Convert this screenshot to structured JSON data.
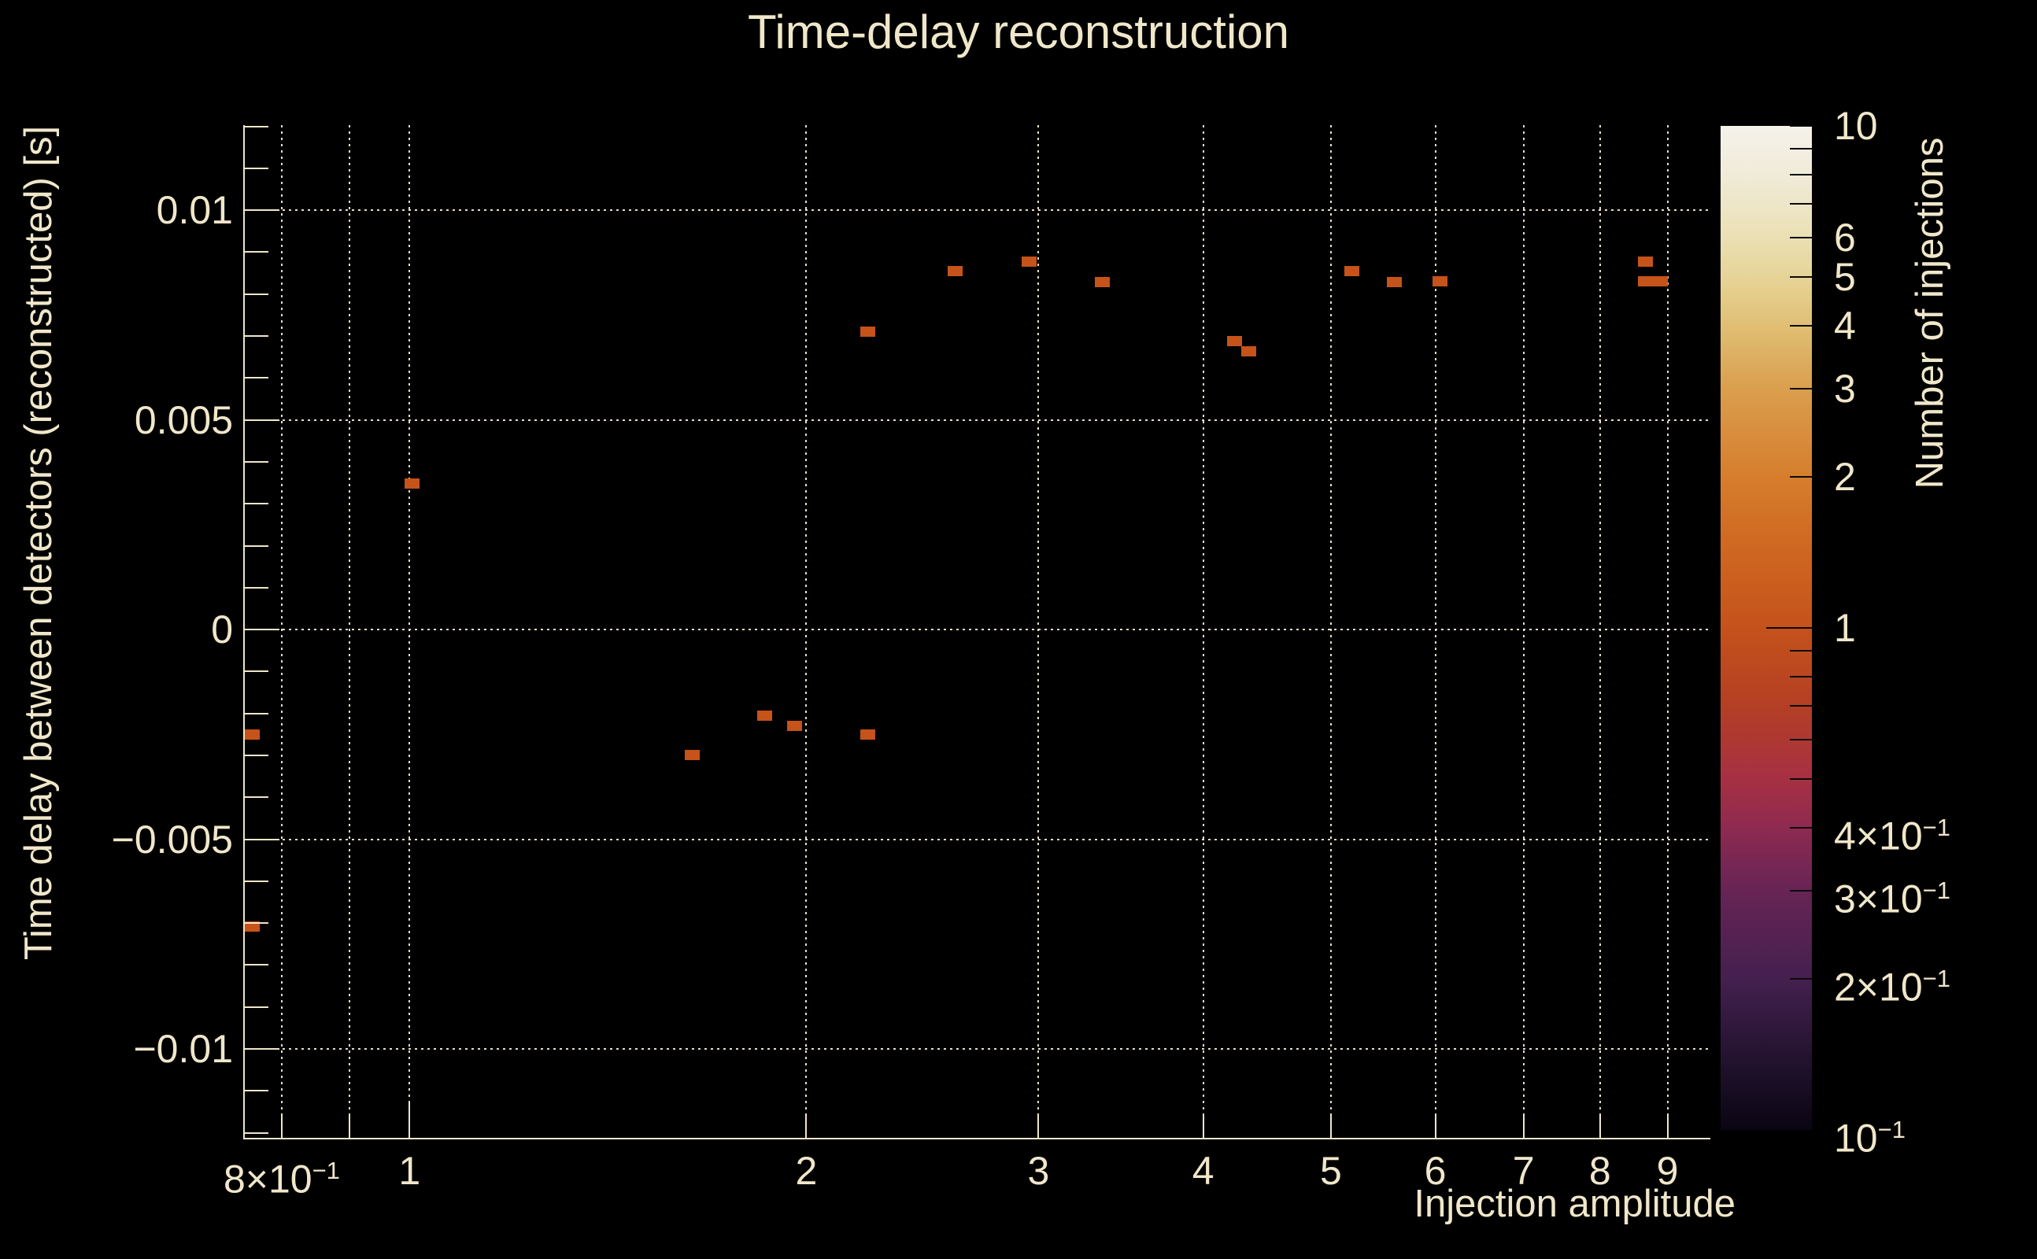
{
  "chart_data": {
    "type": "heatmap",
    "title": "Time-delay reconstruction",
    "xlabel": "Injection amplitude",
    "ylabel": "Time delay between detectors (reconstructed) [s]",
    "colorbar_label": "Number of injections",
    "x_scale": "log",
    "xlim": [
      0.75,
      9.7
    ],
    "ylim": [
      -0.01212,
      0.01203
    ],
    "z_scale": "log",
    "zlim": [
      0.1,
      10
    ],
    "grid": true,
    "x_ticks": [
      {
        "v": 0.8,
        "base": "8×10",
        "exp": "−1"
      },
      {
        "v": 0.9
      },
      {
        "v": 1,
        "base": "1"
      },
      {
        "v": 2,
        "base": "2"
      },
      {
        "v": 3,
        "base": "3"
      },
      {
        "v": 4,
        "base": "4"
      },
      {
        "v": 5,
        "base": "5"
      },
      {
        "v": 6,
        "base": "6"
      },
      {
        "v": 7,
        "base": "7"
      },
      {
        "v": 8,
        "base": "8"
      },
      {
        "v": 9,
        "base": "9"
      }
    ],
    "y_major_ticks": [
      {
        "v": 0.01,
        "label": "0.01"
      },
      {
        "v": 0.005,
        "label": "0.005"
      },
      {
        "v": 0,
        "label": "0"
      },
      {
        "v": -0.005,
        "label": "−0.005"
      },
      {
        "v": -0.01,
        "label": "−0.01"
      }
    ],
    "y_minor_step": 0.001,
    "colorbar_ticks": [
      {
        "v": 10,
        "base": "10"
      },
      {
        "v": 9
      },
      {
        "v": 8
      },
      {
        "v": 7
      },
      {
        "v": 6,
        "base": "6"
      },
      {
        "v": 5,
        "base": "5"
      },
      {
        "v": 4,
        "base": "4"
      },
      {
        "v": 3,
        "base": "3"
      },
      {
        "v": 2,
        "base": "2"
      },
      {
        "v": 1,
        "base": "1"
      },
      {
        "v": 0.9
      },
      {
        "v": 0.8
      },
      {
        "v": 0.7
      },
      {
        "v": 0.6
      },
      {
        "v": 0.5
      },
      {
        "v": 0.4,
        "base": "4×10",
        "exp": "−1"
      },
      {
        "v": 0.3,
        "base": "3×10",
        "exp": "−1"
      },
      {
        "v": 0.2,
        "base": "2×10",
        "exp": "−1"
      },
      {
        "v": 0.1,
        "base": "10",
        "exp": "−1"
      }
    ],
    "bins": [
      {
        "x": 0.76,
        "y": -0.00251,
        "count": 1
      },
      {
        "x": 0.76,
        "y": -0.00709,
        "count": 1
      },
      {
        "x": 1.005,
        "y": 0.00349,
        "count": 1
      },
      {
        "x": 1.638,
        "y": -0.003,
        "count": 1
      },
      {
        "x": 1.859,
        "y": -0.00205,
        "count": 1
      },
      {
        "x": 1.959,
        "y": -0.00229,
        "count": 1
      },
      {
        "x": 2.225,
        "y": -0.0025,
        "count": 1
      },
      {
        "x": 2.225,
        "y": 0.00711,
        "count": 1
      },
      {
        "x": 2.593,
        "y": 0.00854,
        "count": 1
      },
      {
        "x": 2.95,
        "y": 0.00877,
        "count": 1
      },
      {
        "x": 3.352,
        "y": 0.00828,
        "count": 1
      },
      {
        "x": 4.224,
        "y": 0.00687,
        "count": 1
      },
      {
        "x": 4.33,
        "y": 0.00663,
        "count": 1
      },
      {
        "x": 5.183,
        "y": 0.00854,
        "count": 1
      },
      {
        "x": 5.588,
        "y": 0.00828,
        "count": 1
      },
      {
        "x": 6.052,
        "y": 0.0083,
        "count": 1
      },
      {
        "x": 8.655,
        "y": 0.00878,
        "count": 1
      },
      {
        "x": 8.655,
        "y": 0.0083,
        "count": 1
      },
      {
        "x": 8.89,
        "y": 0.0083,
        "count": 1
      }
    ],
    "marker_color": "#c5531a",
    "text_color": "#f0e7ca",
    "background_color": "#000000",
    "palette": [
      {
        "v": 10,
        "color": "#f5f2ea"
      },
      {
        "v": 8,
        "color": "#f0ebd9"
      },
      {
        "v": 6,
        "color": "#ebe0b4"
      },
      {
        "v": 5,
        "color": "#e6d497"
      },
      {
        "v": 4,
        "color": "#e0bf74"
      },
      {
        "v": 3,
        "color": "#da9f4e"
      },
      {
        "v": 2,
        "color": "#d67e2d"
      },
      {
        "v": 1.5,
        "color": "#d06a22"
      },
      {
        "v": 1,
        "color": "#c5521b"
      },
      {
        "v": 0.7,
        "color": "#b43f24"
      },
      {
        "v": 0.5,
        "color": "#a63043"
      },
      {
        "v": 0.4,
        "color": "#8e2a50"
      },
      {
        "v": 0.3,
        "color": "#672455"
      },
      {
        "v": 0.2,
        "color": "#44204f"
      },
      {
        "v": 0.13,
        "color": "#1d1029"
      },
      {
        "v": 0.1,
        "color": "#0a0512"
      }
    ]
  }
}
